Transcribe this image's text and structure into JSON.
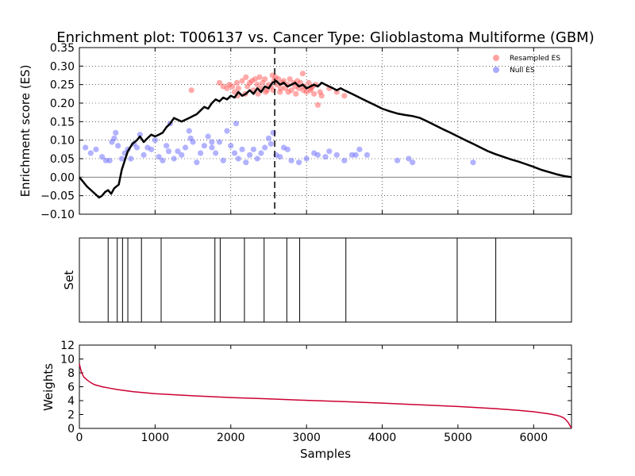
{
  "chart_data": {
    "type": "scatter",
    "title": "Enrichment plot: T006137 vs. Cancer Type: Glioblastoma Multiforme (GBM)",
    "n_samples": 6500,
    "colors": {
      "es_line": "#000000",
      "resampled": "#ff5555",
      "null": "#6666ff",
      "weights_line": "#cc0033",
      "zero_line": "#808080"
    },
    "panels": {
      "es": {
        "ylabel": "Enrichment score (ES)",
        "xlim": [
          0,
          6500
        ],
        "ylim": [
          -0.1,
          0.35
        ],
        "yticks": [
          -0.1,
          -0.05,
          0.0,
          0.05,
          0.1,
          0.15,
          0.2,
          0.25,
          0.3,
          0.35
        ],
        "ytick_labels": [
          "−0.10",
          "−0.05",
          "0.00",
          "0.05",
          "0.10",
          "0.15",
          "0.20",
          "0.25",
          "0.30",
          "0.35"
        ],
        "grid": true,
        "peak_x": 2580,
        "legend": {
          "position": "top-right",
          "entries": [
            {
              "label": "Resampled ES",
              "series": "resampled"
            },
            {
              "label": "Null ES",
              "series": "null"
            }
          ]
        },
        "es_curve": {
          "x": [
            0,
            100,
            180,
            260,
            300,
            340,
            380,
            420,
            460,
            520,
            560,
            600,
            640,
            700,
            760,
            800,
            850,
            900,
            950,
            1000,
            1050,
            1100,
            1150,
            1200,
            1250,
            1300,
            1350,
            1400,
            1450,
            1500,
            1550,
            1600,
            1650,
            1700,
            1750,
            1800,
            1850,
            1900,
            1950,
            2000,
            2050,
            2100,
            2150,
            2200,
            2250,
            2300,
            2350,
            2400,
            2450,
            2500,
            2550,
            2600,
            2650,
            2700,
            2750,
            2800,
            2850,
            2900,
            2950,
            3000,
            3050,
            3100,
            3150,
            3200,
            3250,
            3300,
            3350,
            3400,
            3450,
            3500,
            3600,
            3700,
            3800,
            3900,
            4000,
            4100,
            4200,
            4300,
            4400,
            4500,
            4600,
            4700,
            4800,
            4900,
            5000,
            5100,
            5200,
            5300,
            5400,
            5500,
            5600,
            5700,
            5800,
            5900,
            6000,
            6100,
            6200,
            6300,
            6400,
            6500
          ],
          "y": [
            0.0,
            -0.025,
            -0.04,
            -0.055,
            -0.05,
            -0.04,
            -0.035,
            -0.045,
            -0.03,
            -0.02,
            0.02,
            0.045,
            0.07,
            0.09,
            0.1,
            0.11,
            0.095,
            0.105,
            0.115,
            0.11,
            0.115,
            0.12,
            0.135,
            0.145,
            0.16,
            0.155,
            0.15,
            0.155,
            0.16,
            0.165,
            0.17,
            0.18,
            0.19,
            0.185,
            0.2,
            0.21,
            0.205,
            0.215,
            0.21,
            0.22,
            0.215,
            0.23,
            0.22,
            0.225,
            0.235,
            0.225,
            0.24,
            0.23,
            0.245,
            0.24,
            0.255,
            0.26,
            0.25,
            0.255,
            0.245,
            0.25,
            0.255,
            0.245,
            0.25,
            0.24,
            0.245,
            0.25,
            0.245,
            0.255,
            0.25,
            0.245,
            0.24,
            0.235,
            0.24,
            0.235,
            0.225,
            0.215,
            0.205,
            0.195,
            0.185,
            0.178,
            0.172,
            0.168,
            0.165,
            0.16,
            0.15,
            0.14,
            0.13,
            0.12,
            0.11,
            0.1,
            0.09,
            0.08,
            0.07,
            0.062,
            0.055,
            0.048,
            0.042,
            0.035,
            0.028,
            0.02,
            0.014,
            0.008,
            0.003,
            0.0
          ]
        },
        "resampled_es": [
          [
            1480,
            0.235
          ],
          [
            1850,
            0.255
          ],
          [
            1900,
            0.245
          ],
          [
            1950,
            0.24
          ],
          [
            1980,
            0.25
          ],
          [
            2020,
            0.245
          ],
          [
            2050,
            0.23
          ],
          [
            2080,
            0.255
          ],
          [
            2100,
            0.24
          ],
          [
            2150,
            0.26
          ],
          [
            2200,
            0.27
          ],
          [
            2220,
            0.245
          ],
          [
            2250,
            0.255
          ],
          [
            2280,
            0.26
          ],
          [
            2300,
            0.235
          ],
          [
            2320,
            0.265
          ],
          [
            2350,
            0.25
          ],
          [
            2380,
            0.27
          ],
          [
            2400,
            0.24
          ],
          [
            2420,
            0.255
          ],
          [
            2450,
            0.265
          ],
          [
            2480,
            0.235
          ],
          [
            2500,
            0.25
          ],
          [
            2530,
            0.245
          ],
          [
            2550,
            0.275
          ],
          [
            2570,
            0.26
          ],
          [
            2590,
            0.27
          ],
          [
            2610,
            0.25
          ],
          [
            2630,
            0.265
          ],
          [
            2650,
            0.23
          ],
          [
            2680,
            0.255
          ],
          [
            2700,
            0.26
          ],
          [
            2720,
            0.24
          ],
          [
            2750,
            0.25
          ],
          [
            2780,
            0.265
          ],
          [
            2800,
            0.235
          ],
          [
            2830,
            0.255
          ],
          [
            2850,
            0.245
          ],
          [
            2880,
            0.26
          ],
          [
            2900,
            0.24
          ],
          [
            2920,
            0.255
          ],
          [
            2950,
            0.28
          ],
          [
            2970,
            0.245
          ],
          [
            3000,
            0.23
          ],
          [
            3030,
            0.255
          ],
          [
            3050,
            0.235
          ],
          [
            3080,
            0.245
          ],
          [
            3100,
            0.225
          ],
          [
            3120,
            0.25
          ],
          [
            3150,
            0.195
          ],
          [
            3180,
            0.23
          ],
          [
            3200,
            0.22
          ],
          [
            3300,
            0.24
          ],
          [
            3400,
            0.23
          ],
          [
            3500,
            0.22
          ],
          [
            2360,
            0.225
          ],
          [
            2460,
            0.23
          ],
          [
            2560,
            0.235
          ],
          [
            2660,
            0.24
          ],
          [
            2760,
            0.23
          ],
          [
            2860,
            0.225
          ],
          [
            2960,
            0.235
          ],
          [
            2090,
            0.22
          ],
          [
            2190,
            0.225
          ],
          [
            3060,
            0.24
          ]
        ],
        "null_es": [
          [
            80,
            0.08
          ],
          [
            150,
            0.065
          ],
          [
            220,
            0.075
          ],
          [
            300,
            0.055
          ],
          [
            350,
            0.045
          ],
          [
            400,
            0.045
          ],
          [
            430,
            0.095
          ],
          [
            460,
            0.105
          ],
          [
            480,
            0.12
          ],
          [
            510,
            0.085
          ],
          [
            560,
            0.05
          ],
          [
            600,
            0.065
          ],
          [
            640,
            0.075
          ],
          [
            680,
            0.05
          ],
          [
            720,
            0.09
          ],
          [
            760,
            0.08
          ],
          [
            800,
            0.115
          ],
          [
            850,
            0.06
          ],
          [
            900,
            0.08
          ],
          [
            950,
            0.075
          ],
          [
            1000,
            0.1
          ],
          [
            1050,
            0.055
          ],
          [
            1100,
            0.045
          ],
          [
            1150,
            0.085
          ],
          [
            1200,
            0.145
          ],
          [
            1250,
            0.05
          ],
          [
            1300,
            0.07
          ],
          [
            1350,
            0.06
          ],
          [
            1400,
            0.08
          ],
          [
            1450,
            0.125
          ],
          [
            1470,
            0.105
          ],
          [
            1500,
            0.095
          ],
          [
            1550,
            0.04
          ],
          [
            1600,
            0.065
          ],
          [
            1650,
            0.085
          ],
          [
            1700,
            0.11
          ],
          [
            1750,
            0.08
          ],
          [
            1800,
            0.065
          ],
          [
            1850,
            0.095
          ],
          [
            1900,
            0.045
          ],
          [
            1950,
            0.125
          ],
          [
            2000,
            0.085
          ],
          [
            2050,
            0.065
          ],
          [
            2070,
            0.145
          ],
          [
            2100,
            0.05
          ],
          [
            2150,
            0.075
          ],
          [
            2200,
            0.04
          ],
          [
            2250,
            0.06
          ],
          [
            2300,
            0.075
          ],
          [
            2350,
            0.05
          ],
          [
            2400,
            0.065
          ],
          [
            2450,
            0.08
          ],
          [
            2500,
            0.105
          ],
          [
            2530,
            0.09
          ],
          [
            2560,
            0.12
          ],
          [
            2600,
            0.06
          ],
          [
            2650,
            0.055
          ],
          [
            2700,
            0.08
          ],
          [
            2750,
            0.075
          ],
          [
            2800,
            0.045
          ],
          [
            2900,
            0.04
          ],
          [
            3000,
            0.05
          ],
          [
            3100,
            0.065
          ],
          [
            3150,
            0.06
          ],
          [
            3250,
            0.055
          ],
          [
            3300,
            0.07
          ],
          [
            3400,
            0.06
          ],
          [
            3500,
            0.045
          ],
          [
            3600,
            0.06
          ],
          [
            3700,
            0.075
          ],
          [
            3800,
            0.06
          ],
          [
            4200,
            0.045
          ],
          [
            4350,
            0.05
          ],
          [
            4400,
            0.04
          ],
          [
            5200,
            0.04
          ],
          [
            3650,
            0.06
          ],
          [
            1180,
            0.07
          ],
          [
            1750,
            0.095
          ]
        ]
      },
      "set": {
        "ylabel": "Set",
        "xlim": [
          0,
          6500
        ],
        "hits": [
          380,
          500,
          570,
          640,
          820,
          1080,
          1790,
          1860,
          2180,
          2440,
          2740,
          2910,
          3520,
          4990,
          5500
        ]
      },
      "weights": {
        "ylabel": "Weights",
        "xlabel": "Samples",
        "xlim": [
          0,
          6500
        ],
        "ylim": [
          0,
          12
        ],
        "yticks": [
          0,
          2,
          4,
          6,
          8,
          10,
          12
        ],
        "xticks": [
          0,
          1000,
          2000,
          3000,
          4000,
          5000,
          6000
        ],
        "curve": {
          "x": [
            0,
            10,
            30,
            60,
            100,
            150,
            200,
            300,
            400,
            500,
            700,
            1000,
            1500,
            2000,
            2500,
            3000,
            3500,
            4000,
            4500,
            5000,
            5500,
            5800,
            6000,
            6200,
            6300,
            6350,
            6400,
            6430,
            6460,
            6480,
            6500
          ],
          "y": [
            9.3,
            8.8,
            8.0,
            7.4,
            7.0,
            6.6,
            6.3,
            6.0,
            5.8,
            5.6,
            5.3,
            5.0,
            4.7,
            4.45,
            4.25,
            4.05,
            3.85,
            3.65,
            3.4,
            3.15,
            2.85,
            2.6,
            2.4,
            2.1,
            1.9,
            1.75,
            1.5,
            1.2,
            0.8,
            0.4,
            0.05
          ]
        }
      }
    }
  }
}
